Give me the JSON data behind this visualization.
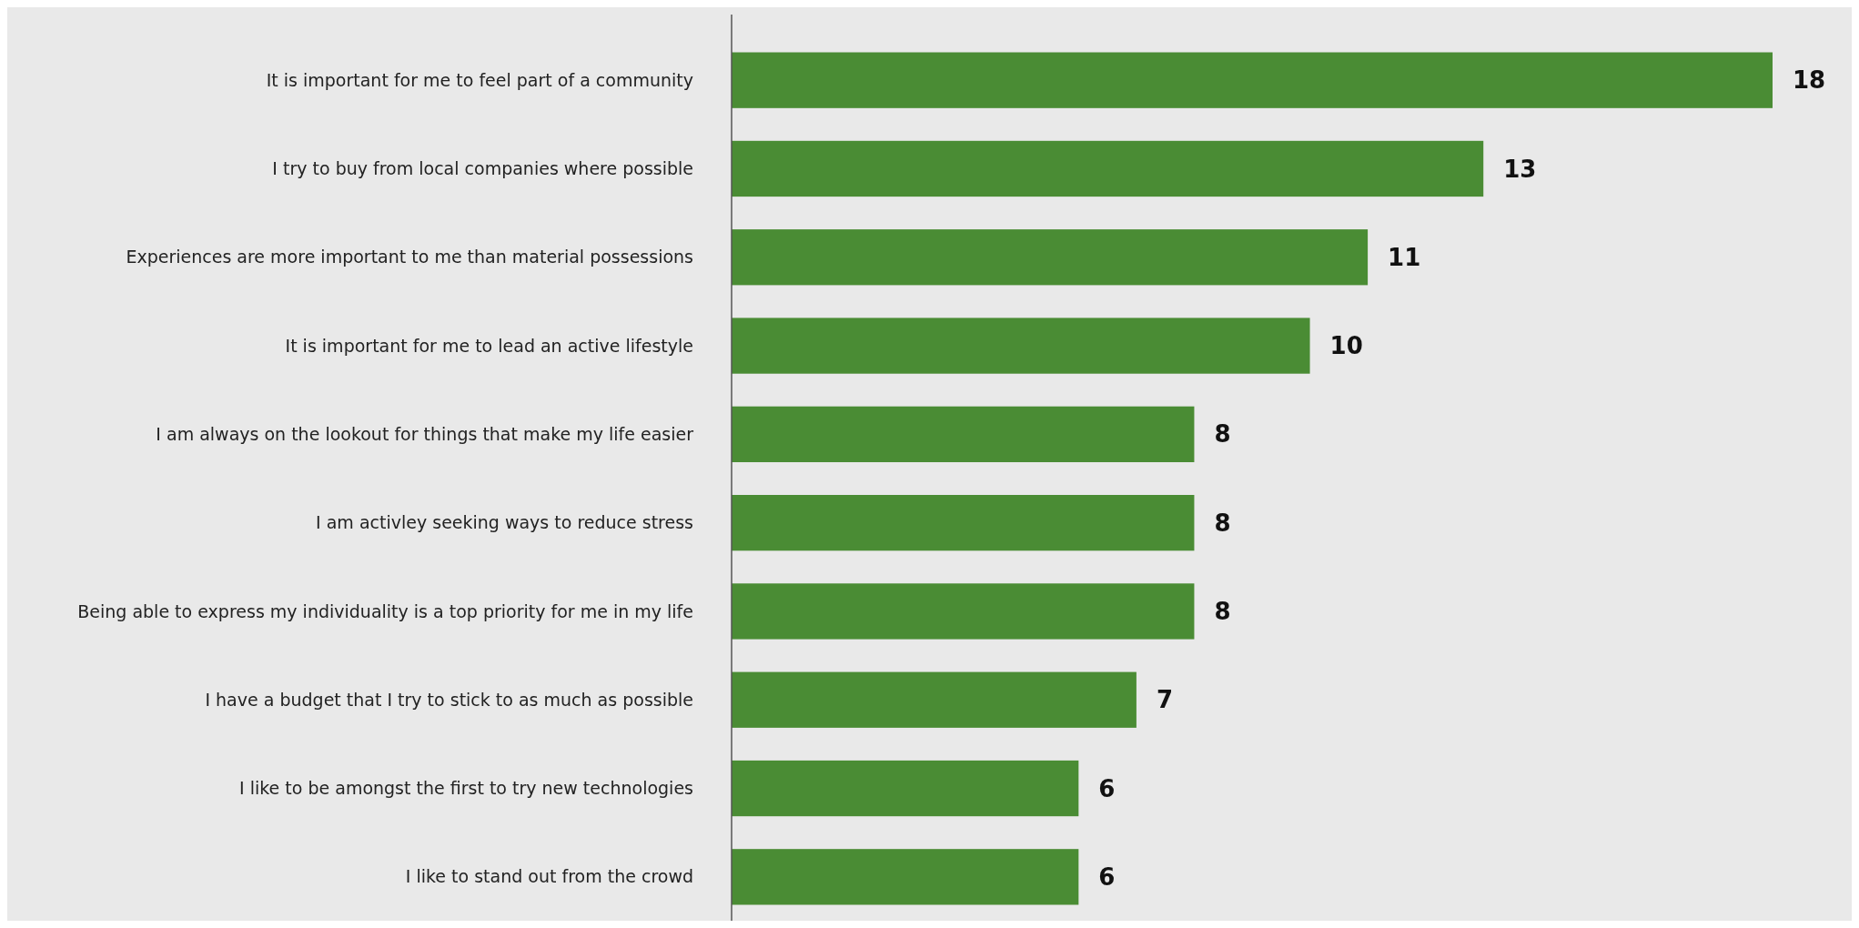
{
  "chart_data": {
    "type": "bar",
    "orientation": "horizontal",
    "categories": [
      "It is important for me to feel part of a community",
      "I try to buy from local companies where possible",
      "Experiences are more important to me than material possessions",
      "It is important for me to lead an active lifestyle",
      "I am always on the lookout for things that make my life easier",
      "I am activley seeking ways to reduce stress",
      "Being able to express my individuality is a top priority for me in my life",
      "I have a budget that I try to stick to as much as possible",
      "I like to be amongst the first to try new technologies",
      "I like to stand out from the crowd"
    ],
    "values": [
      18,
      13,
      11,
      10,
      8,
      8,
      8,
      7,
      6,
      6
    ],
    "color": "#4a8c34",
    "data_labels": true
  }
}
